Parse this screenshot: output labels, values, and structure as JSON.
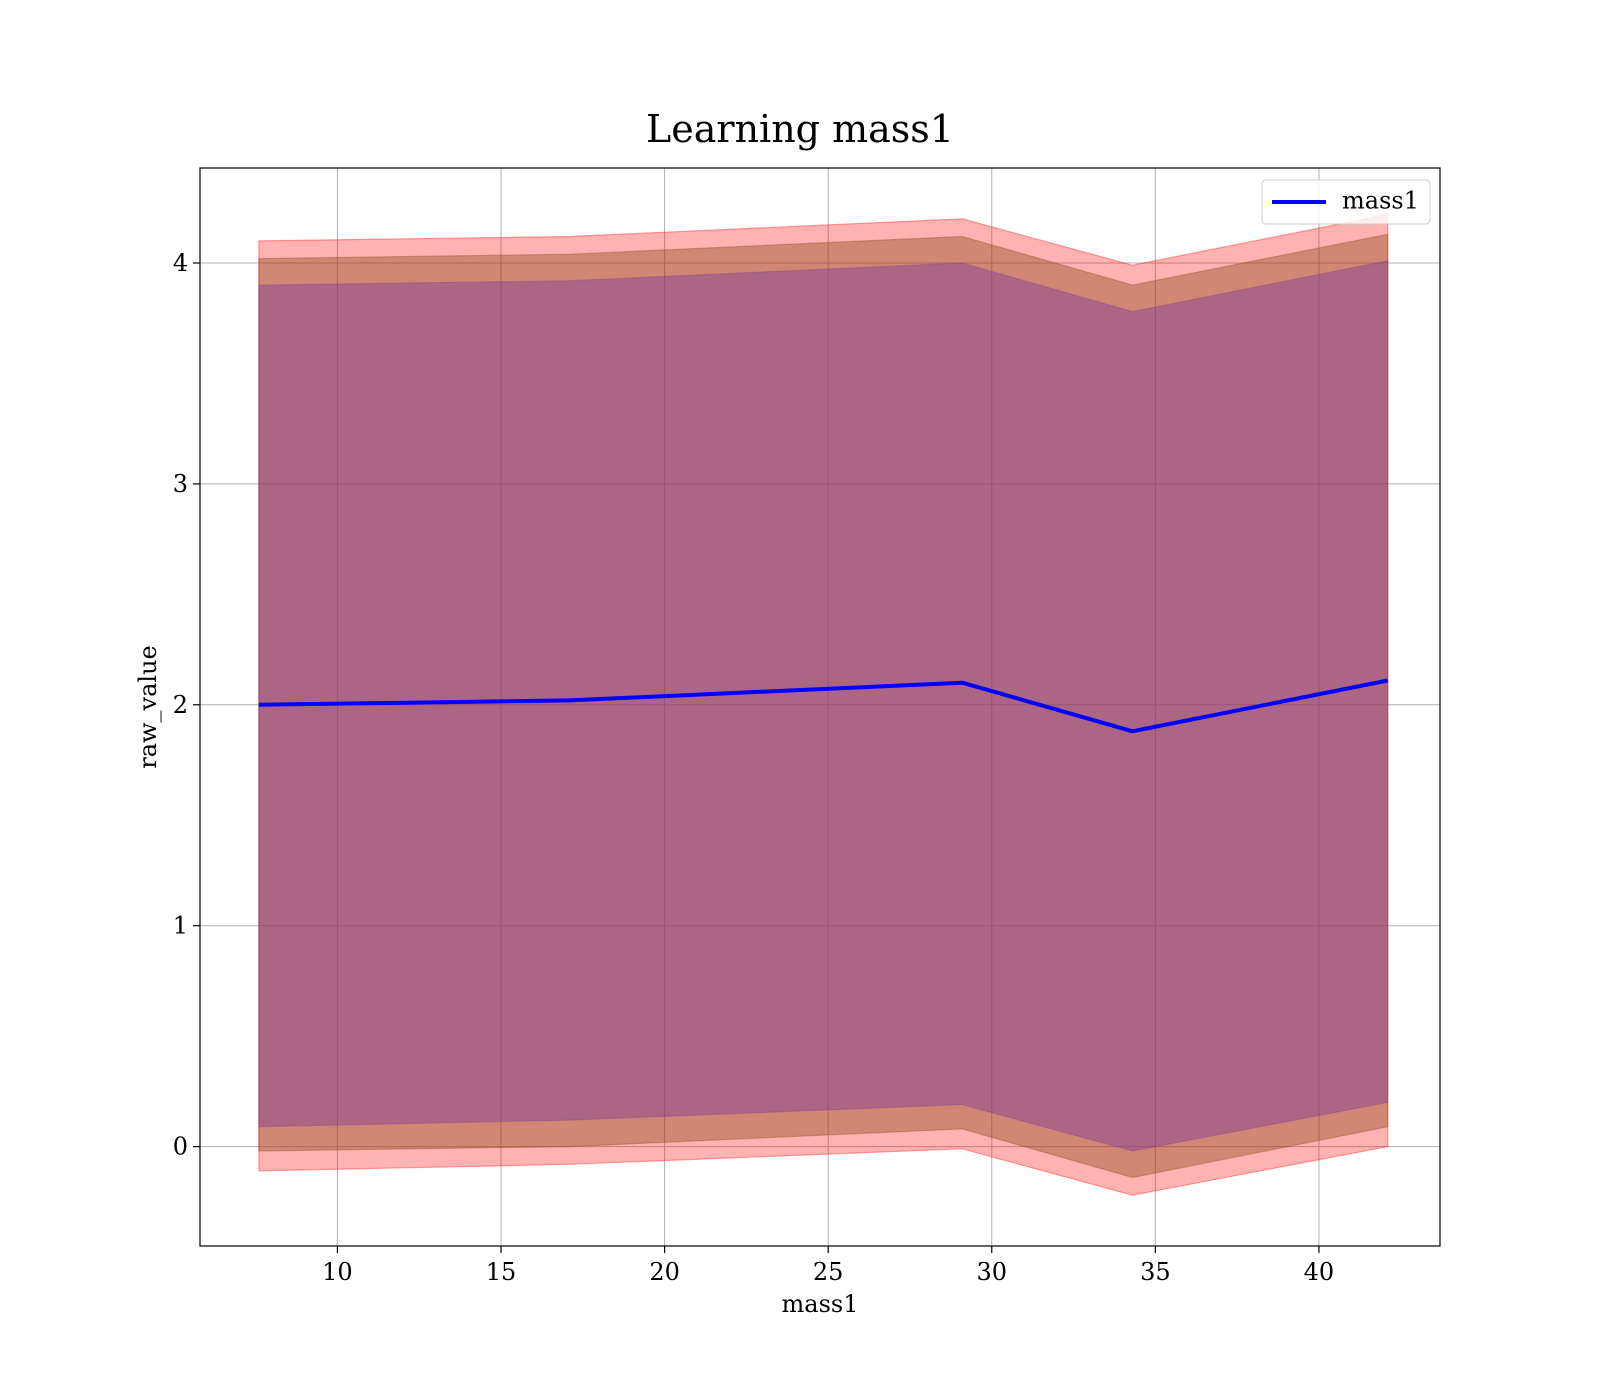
{
  "colors": {
    "line": "#0000ff",
    "band_outer": "#ff0000",
    "band_middle": "#8b4513",
    "band_inner": "#7f3f98",
    "grid": "#b0b0b0",
    "axes": "#000000"
  },
  "chart_data": {
    "type": "line",
    "title": "Learning mass1",
    "xlabel": "mass1",
    "ylabel": "raw_value",
    "xlim": [
      5.8,
      43.7
    ],
    "ylim": [
      -0.45,
      4.43
    ],
    "xticks": [
      10,
      15,
      20,
      25,
      30,
      35,
      40
    ],
    "yticks": [
      0,
      1,
      2,
      3,
      4
    ],
    "grid": true,
    "legend_position": "top-right",
    "x": [
      7.6,
      17.1,
      29.1,
      34.3,
      42.1
    ],
    "series": [
      {
        "name": "mass1",
        "values": [
          2.0,
          2.02,
          2.1,
          1.88,
          2.11
        ]
      }
    ],
    "bands": [
      {
        "level": "outer",
        "lower": [
          -0.11,
          -0.08,
          -0.01,
          -0.22,
          0.0
        ],
        "upper": [
          4.1,
          4.12,
          4.2,
          3.99,
          4.22
        ]
      },
      {
        "level": "middle",
        "lower": [
          -0.02,
          0.0,
          0.08,
          -0.14,
          0.09
        ],
        "upper": [
          4.02,
          4.04,
          4.12,
          3.9,
          4.13
        ]
      },
      {
        "level": "inner",
        "lower": [
          0.09,
          0.12,
          0.19,
          -0.02,
          0.2
        ],
        "upper": [
          3.9,
          3.92,
          4.0,
          3.78,
          4.01
        ]
      }
    ]
  }
}
